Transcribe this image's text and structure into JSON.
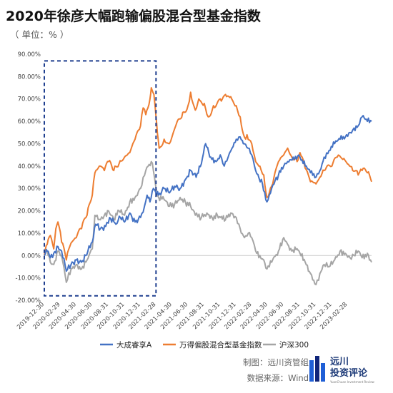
{
  "title": "2020年徐彦大幅跑输偏股混合型基金指数",
  "unit_label": "（ 单位：% ）",
  "footer": {
    "maker": "制图：远川资管组",
    "source": "数据来源：Wind"
  },
  "logo": {
    "text_line1": "远川",
    "text_line2": "投资评论",
    "subtitle": "YuanChuan Investment Review",
    "colors": [
      "#1f5fd6",
      "#10257a"
    ]
  },
  "chart_data": {
    "type": "line",
    "title": "2020年徐彦大幅跑输偏股混合型基金指数",
    "xlabel": "",
    "ylabel": "",
    "ylim": [
      -20,
      90
    ],
    "yticks": [
      "-20.00%",
      "-10.00%",
      "0.00%",
      "10.00%",
      "20.00%",
      "30.00%",
      "40.00%",
      "50.00%",
      "60.00%",
      "70.00%",
      "80.00%",
      "90.00%"
    ],
    "xticks": [
      "2019-12-30",
      "2020-02-29",
      "2020-04-30",
      "2020-06-30",
      "2020-08-31",
      "2020-10-31",
      "2020-12-31",
      "2021-02-28",
      "2021-04-30",
      "2021-06-30",
      "2021-08-31",
      "2021-10-31",
      "2021-12-31",
      "2022-02-28",
      "2022-04-30",
      "2022-06-30",
      "2022-08-31",
      "2022-10-31",
      "2022-12-31",
      "2023-02-28"
    ],
    "x_range": [
      "2019-12-30",
      "2023-05-31"
    ],
    "grid": false,
    "legend_position": "bottom",
    "highlight_box": {
      "x_range": [
        "2019-12-30",
        "2021-02-28"
      ],
      "y_range": [
        -18,
        87
      ],
      "style": "dashed"
    },
    "series": [
      {
        "name": "大成睿享A",
        "color": "#4472c4",
        "points": [
          [
            "2019-12-30",
            0
          ],
          [
            "2020-01-10",
            2
          ],
          [
            "2020-01-22",
            -1
          ],
          [
            "2020-02-04",
            1
          ],
          [
            "2020-02-20",
            4
          ],
          [
            "2020-03-05",
            2
          ],
          [
            "2020-03-23",
            -7
          ],
          [
            "2020-04-10",
            -4
          ],
          [
            "2020-04-30",
            -2
          ],
          [
            "2020-05-20",
            -3
          ],
          [
            "2020-06-05",
            0
          ],
          [
            "2020-06-30",
            6
          ],
          [
            "2020-07-13",
            14
          ],
          [
            "2020-07-31",
            12
          ],
          [
            "2020-08-20",
            13
          ],
          [
            "2020-09-04",
            17
          ],
          [
            "2020-09-28",
            14
          ],
          [
            "2020-10-15",
            17
          ],
          [
            "2020-10-31",
            15
          ],
          [
            "2020-11-20",
            19
          ],
          [
            "2020-12-10",
            15
          ],
          [
            "2020-12-31",
            17
          ],
          [
            "2021-01-15",
            22
          ],
          [
            "2021-01-25",
            27
          ],
          [
            "2021-02-05",
            24
          ],
          [
            "2021-02-18",
            30
          ],
          [
            "2021-03-10",
            27
          ],
          [
            "2021-03-31",
            30
          ],
          [
            "2021-04-20",
            28
          ],
          [
            "2021-05-10",
            31
          ],
          [
            "2021-05-31",
            30
          ],
          [
            "2021-06-20",
            34
          ],
          [
            "2021-07-10",
            38
          ],
          [
            "2021-07-31",
            35
          ],
          [
            "2021-08-20",
            41
          ],
          [
            "2021-09-05",
            50
          ],
          [
            "2021-09-25",
            44
          ],
          [
            "2021-10-15",
            42
          ],
          [
            "2021-10-31",
            45
          ],
          [
            "2021-11-15",
            40
          ],
          [
            "2021-11-30",
            44
          ],
          [
            "2021-12-15",
            48
          ],
          [
            "2021-12-31",
            52
          ],
          [
            "2022-01-15",
            53
          ],
          [
            "2022-01-31",
            50
          ],
          [
            "2022-02-14",
            48
          ],
          [
            "2022-02-28",
            45
          ],
          [
            "2022-03-15",
            38
          ],
          [
            "2022-04-10",
            32
          ],
          [
            "2022-04-27",
            24
          ],
          [
            "2022-05-15",
            30
          ],
          [
            "2022-06-10",
            36
          ],
          [
            "2022-06-30",
            40
          ],
          [
            "2022-07-15",
            42
          ],
          [
            "2022-08-05",
            44
          ],
          [
            "2022-08-31",
            44
          ],
          [
            "2022-09-20",
            40
          ],
          [
            "2022-10-10",
            37
          ],
          [
            "2022-10-31",
            35
          ],
          [
            "2022-11-15",
            38
          ],
          [
            "2022-12-01",
            44
          ],
          [
            "2022-12-20",
            47
          ],
          [
            "2023-01-10",
            50
          ],
          [
            "2023-01-31",
            52
          ],
          [
            "2023-02-20",
            53
          ],
          [
            "2023-03-10",
            55
          ],
          [
            "2023-03-25",
            57
          ],
          [
            "2023-04-10",
            58
          ],
          [
            "2023-04-25",
            62
          ],
          [
            "2023-05-15",
            60
          ],
          [
            "2023-05-31",
            60
          ]
        ]
      },
      {
        "name": "万得偏股混合型基金指数",
        "color": "#ed7d31",
        "points": [
          [
            "2019-12-30",
            0
          ],
          [
            "2020-01-10",
            5
          ],
          [
            "2020-01-22",
            9
          ],
          [
            "2020-02-04",
            3
          ],
          [
            "2020-02-12",
            12
          ],
          [
            "2020-02-20",
            15
          ],
          [
            "2020-03-05",
            6
          ],
          [
            "2020-03-23",
            -2
          ],
          [
            "2020-04-05",
            4
          ],
          [
            "2020-04-20",
            7
          ],
          [
            "2020-04-30",
            8
          ],
          [
            "2020-05-20",
            12
          ],
          [
            "2020-06-10",
            18
          ],
          [
            "2020-06-30",
            27
          ],
          [
            "2020-07-10",
            37
          ],
          [
            "2020-07-31",
            40
          ],
          [
            "2020-08-15",
            38
          ],
          [
            "2020-08-31",
            42
          ],
          [
            "2020-09-20",
            38
          ],
          [
            "2020-10-10",
            41
          ],
          [
            "2020-10-31",
            44
          ],
          [
            "2020-11-20",
            46
          ],
          [
            "2020-12-10",
            52
          ],
          [
            "2020-12-31",
            58
          ],
          [
            "2021-01-10",
            66
          ],
          [
            "2021-01-20",
            63
          ],
          [
            "2021-02-05",
            70
          ],
          [
            "2021-02-10",
            75
          ],
          [
            "2021-02-20",
            72
          ],
          [
            "2021-02-28",
            62
          ],
          [
            "2021-03-05",
            55
          ],
          [
            "2021-03-12",
            48
          ],
          [
            "2021-03-31",
            52
          ],
          [
            "2021-04-20",
            50
          ],
          [
            "2021-05-05",
            55
          ],
          [
            "2021-05-20",
            60
          ],
          [
            "2021-06-10",
            64
          ],
          [
            "2021-06-30",
            67
          ],
          [
            "2021-07-10",
            73
          ],
          [
            "2021-07-28",
            65
          ],
          [
            "2021-08-10",
            70
          ],
          [
            "2021-08-31",
            68
          ],
          [
            "2021-09-15",
            62
          ],
          [
            "2021-10-05",
            67
          ],
          [
            "2021-10-31",
            70
          ],
          [
            "2021-11-20",
            72
          ],
          [
            "2021-12-10",
            71
          ],
          [
            "2021-12-31",
            67
          ],
          [
            "2022-01-15",
            62
          ],
          [
            "2022-01-31",
            53
          ],
          [
            "2022-02-10",
            54
          ],
          [
            "2022-02-28",
            50
          ],
          [
            "2022-03-15",
            42
          ],
          [
            "2022-03-31",
            40
          ],
          [
            "2022-04-15",
            36
          ],
          [
            "2022-04-27",
            26
          ],
          [
            "2022-05-15",
            31
          ],
          [
            "2022-06-10",
            42
          ],
          [
            "2022-06-30",
            45
          ],
          [
            "2022-07-15",
            48
          ],
          [
            "2022-07-31",
            44
          ],
          [
            "2022-08-20",
            42
          ],
          [
            "2022-08-31",
            46
          ],
          [
            "2022-09-20",
            39
          ],
          [
            "2022-10-10",
            33
          ],
          [
            "2022-10-31",
            32
          ],
          [
            "2022-11-15",
            35
          ],
          [
            "2022-12-01",
            38
          ],
          [
            "2022-12-31",
            40
          ],
          [
            "2023-01-20",
            44
          ],
          [
            "2023-02-10",
            43
          ],
          [
            "2023-02-28",
            41
          ],
          [
            "2023-03-20",
            38
          ],
          [
            "2023-04-10",
            36
          ],
          [
            "2023-04-25",
            38
          ],
          [
            "2023-05-15",
            37
          ],
          [
            "2023-05-31",
            33
          ]
        ]
      },
      {
        "name": "沪深300",
        "color": "#a5a5a5",
        "points": [
          [
            "2019-12-30",
            0
          ],
          [
            "2020-01-10",
            2
          ],
          [
            "2020-01-22",
            -3
          ],
          [
            "2020-02-04",
            -4
          ],
          [
            "2020-02-20",
            2
          ],
          [
            "2020-03-05",
            0
          ],
          [
            "2020-03-23",
            -12
          ],
          [
            "2020-04-10",
            -6
          ],
          [
            "2020-04-30",
            -4
          ],
          [
            "2020-05-20",
            -6
          ],
          [
            "2020-06-10",
            -2
          ],
          [
            "2020-06-30",
            3
          ],
          [
            "2020-07-10",
            18
          ],
          [
            "2020-07-31",
            16
          ],
          [
            "2020-08-15",
            18
          ],
          [
            "2020-08-31",
            20
          ],
          [
            "2020-09-20",
            16
          ],
          [
            "2020-10-10",
            20
          ],
          [
            "2020-10-31",
            18
          ],
          [
            "2020-11-20",
            24
          ],
          [
            "2020-12-10",
            26
          ],
          [
            "2020-12-31",
            30
          ],
          [
            "2021-01-10",
            35
          ],
          [
            "2021-01-20",
            38
          ],
          [
            "2021-02-10",
            42
          ],
          [
            "2021-02-18",
            38
          ],
          [
            "2021-02-28",
            30
          ],
          [
            "2021-03-10",
            26
          ],
          [
            "2021-03-31",
            25
          ],
          [
            "2021-04-20",
            22
          ],
          [
            "2021-05-10",
            23
          ],
          [
            "2021-05-31",
            26
          ],
          [
            "2021-06-20",
            24
          ],
          [
            "2021-07-10",
            22
          ],
          [
            "2021-07-28",
            18
          ],
          [
            "2021-08-20",
            17
          ],
          [
            "2021-09-10",
            19
          ],
          [
            "2021-09-30",
            17
          ],
          [
            "2021-10-20",
            18
          ],
          [
            "2021-10-31",
            17
          ],
          [
            "2021-11-20",
            16
          ],
          [
            "2021-12-10",
            19
          ],
          [
            "2021-12-31",
            17
          ],
          [
            "2022-01-15",
            12
          ],
          [
            "2022-01-31",
            8
          ],
          [
            "2022-02-15",
            10
          ],
          [
            "2022-02-28",
            8
          ],
          [
            "2022-03-15",
            2
          ],
          [
            "2022-03-31",
            0
          ],
          [
            "2022-04-15",
            -2
          ],
          [
            "2022-04-27",
            -6
          ],
          [
            "2022-05-15",
            -3
          ],
          [
            "2022-06-10",
            2
          ],
          [
            "2022-06-30",
            8
          ],
          [
            "2022-07-15",
            5
          ],
          [
            "2022-07-31",
            2
          ],
          [
            "2022-08-20",
            3
          ],
          [
            "2022-08-31",
            1
          ],
          [
            "2022-09-20",
            -3
          ],
          [
            "2022-10-10",
            -8
          ],
          [
            "2022-10-31",
            -13
          ],
          [
            "2022-11-15",
            -8
          ],
          [
            "2022-12-01",
            -4
          ],
          [
            "2022-12-20",
            -5
          ],
          [
            "2023-01-10",
            -2
          ],
          [
            "2023-01-31",
            2
          ],
          [
            "2023-02-20",
            1
          ],
          [
            "2023-03-10",
            -1
          ],
          [
            "2023-03-25",
            0
          ],
          [
            "2023-04-10",
            2
          ],
          [
            "2023-04-25",
            -1
          ],
          [
            "2023-05-15",
            1
          ],
          [
            "2023-05-31",
            -3
          ]
        ]
      }
    ]
  }
}
